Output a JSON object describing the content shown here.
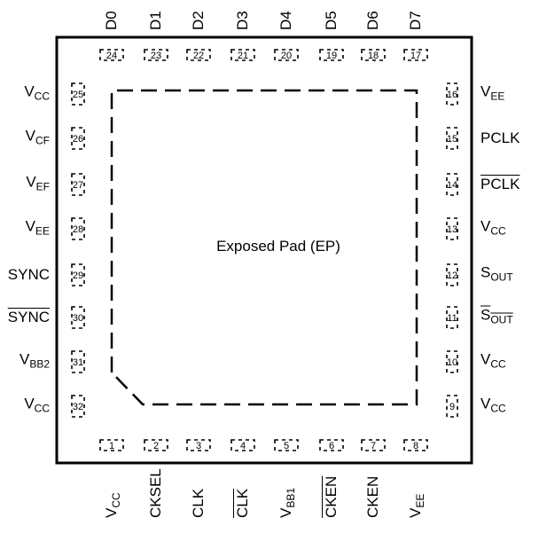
{
  "center_label": "Exposed Pad (EP)",
  "pins": {
    "bottom": [
      {
        "num": "1",
        "name": "V",
        "sub": "CC",
        "bar": false
      },
      {
        "num": "2",
        "name": "CKSEL",
        "sub": "",
        "bar": false
      },
      {
        "num": "3",
        "name": "CLK",
        "sub": "",
        "bar": false
      },
      {
        "num": "4",
        "name": "CLK",
        "sub": "",
        "bar": true
      },
      {
        "num": "5",
        "name": "V",
        "sub": "BB1",
        "bar": false
      },
      {
        "num": "6",
        "name": "CKEN",
        "sub": "",
        "bar": true
      },
      {
        "num": "7",
        "name": "CKEN",
        "sub": "",
        "bar": false
      },
      {
        "num": "8",
        "name": "V",
        "sub": "EE",
        "bar": false
      }
    ],
    "right": [
      {
        "num": "9",
        "name": "V",
        "sub": "CC",
        "bar": false
      },
      {
        "num": "10",
        "name": "V",
        "sub": "CC",
        "bar": false
      },
      {
        "num": "11",
        "name": "S",
        "sub": "OUT",
        "bar": true
      },
      {
        "num": "12",
        "name": "S",
        "sub": "OUT",
        "bar": false
      },
      {
        "num": "13",
        "name": "V",
        "sub": "CC",
        "bar": false
      },
      {
        "num": "14",
        "name": "PCLK",
        "sub": "",
        "bar": true
      },
      {
        "num": "15",
        "name": "PCLK",
        "sub": "",
        "bar": false
      },
      {
        "num": "16",
        "name": "V",
        "sub": "EE",
        "bar": false
      }
    ],
    "top": [
      {
        "num": "17",
        "name": "D7",
        "sub": "",
        "bar": false
      },
      {
        "num": "18",
        "name": "D6",
        "sub": "",
        "bar": false
      },
      {
        "num": "19",
        "name": "D5",
        "sub": "",
        "bar": false
      },
      {
        "num": "20",
        "name": "D4",
        "sub": "",
        "bar": false
      },
      {
        "num": "21",
        "name": "D3",
        "sub": "",
        "bar": false
      },
      {
        "num": "22",
        "name": "D2",
        "sub": "",
        "bar": false
      },
      {
        "num": "23",
        "name": "D1",
        "sub": "",
        "bar": false
      },
      {
        "num": "24",
        "name": "D0",
        "sub": "",
        "bar": false
      }
    ],
    "left": [
      {
        "num": "25",
        "name": "V",
        "sub": "CC",
        "bar": false
      },
      {
        "num": "26",
        "name": "V",
        "sub": "CF",
        "bar": false
      },
      {
        "num": "27",
        "name": "V",
        "sub": "EF",
        "bar": false
      },
      {
        "num": "28",
        "name": "V",
        "sub": "EE",
        "bar": false
      },
      {
        "num": "29",
        "name": "SYNC",
        "sub": "",
        "bar": false
      },
      {
        "num": "30",
        "name": "SYNC",
        "sub": "",
        "bar": true
      },
      {
        "num": "31",
        "name": "V",
        "sub": "BB2",
        "bar": false
      },
      {
        "num": "32",
        "name": "V",
        "sub": "CC",
        "bar": false
      }
    ]
  }
}
